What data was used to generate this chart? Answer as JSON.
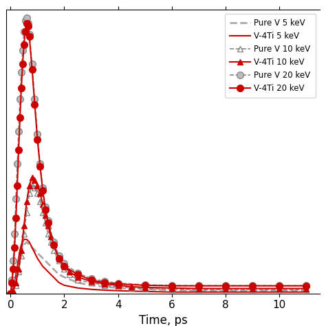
{
  "xlabel": "Time, ps",
  "ylabel": "",
  "xlim": [
    -0.15,
    11.5
  ],
  "ylim": [
    0,
    105
  ],
  "background_color": "#ffffff",
  "legend_loc": "upper right",
  "pure_v_5kev": {
    "t": [
      0.0,
      0.05,
      0.1,
      0.15,
      0.2,
      0.25,
      0.3,
      0.35,
      0.4,
      0.5,
      0.6,
      0.7,
      0.8,
      0.9,
      1.0,
      1.2,
      1.4,
      1.6,
      1.8,
      2.0,
      2.5,
      3.0,
      3.5,
      4.0,
      5.0,
      6.0,
      7.0,
      8.0,
      9.0,
      10.0,
      11.0
    ],
    "y": [
      0,
      1,
      3,
      5,
      7,
      9,
      11,
      13,
      16,
      18,
      19,
      18,
      17,
      16,
      15,
      13,
      11,
      9,
      7,
      6,
      4,
      3,
      2.5,
      2,
      1.5,
      1.2,
      1.0,
      1.0,
      1.0,
      1.0,
      1.0
    ],
    "color": "#aaaaaa",
    "linestyle": "--",
    "linewidth": 2.0,
    "label": "Pure V 5 keV"
  },
  "v4ti_5kev": {
    "t": [
      0.0,
      0.05,
      0.1,
      0.15,
      0.2,
      0.25,
      0.3,
      0.35,
      0.4,
      0.5,
      0.6,
      0.7,
      0.8,
      0.9,
      1.0,
      1.2,
      1.4,
      1.6,
      1.8,
      2.0,
      2.5,
      3.0,
      3.5,
      4.0,
      5.0,
      6.0,
      7.0,
      8.0,
      9.0,
      10.0,
      11.0
    ],
    "y": [
      0,
      1,
      2,
      4,
      7,
      10,
      13,
      16,
      18,
      20,
      20,
      19,
      17,
      15,
      13,
      10,
      8,
      6,
      4,
      3,
      2,
      1.5,
      1.2,
      1.0,
      0.7,
      0.5,
      0.5,
      0.5,
      0.5,
      0.5,
      0.5
    ],
    "color": "#cc0000",
    "linestyle": "-",
    "linewidth": 1.5,
    "label": "V-4Ti 5 keV"
  },
  "pure_v_10kev": {
    "t": [
      0.0,
      0.1,
      0.2,
      0.3,
      0.4,
      0.5,
      0.6,
      0.7,
      0.8,
      0.9,
      1.0,
      1.1,
      1.2,
      1.3,
      1.4,
      1.5,
      1.6,
      1.8,
      2.0,
      2.2,
      2.5,
      3.0,
      3.5,
      4.0,
      4.5,
      5.0,
      6.0,
      7.0,
      8.0,
      9.0,
      10.0,
      11.0
    ],
    "y": [
      0,
      1,
      3,
      8,
      14,
      22,
      30,
      37,
      40,
      39,
      37,
      34,
      30,
      26,
      22,
      19,
      16,
      12,
      9,
      7,
      5,
      4,
      3,
      2.5,
      2,
      1.8,
      1.5,
      1.4,
      1.4,
      1.4,
      1.4,
      1.4
    ],
    "color": "#888888",
    "linestyle": "--",
    "linewidth": 1.2,
    "marker": "^",
    "markersize": 6,
    "markerfacecolor": "none",
    "markeredgecolor": "#888888",
    "label": "Pure V 10 keV"
  },
  "v4ti_10kev": {
    "t": [
      0.0,
      0.1,
      0.2,
      0.3,
      0.4,
      0.5,
      0.6,
      0.7,
      0.8,
      0.9,
      1.0,
      1.1,
      1.2,
      1.3,
      1.4,
      1.5,
      1.6,
      1.8,
      2.0,
      2.2,
      2.5,
      3.0,
      3.5,
      4.0,
      4.5,
      5.0,
      6.0,
      7.0,
      8.0,
      9.0,
      10.0,
      11.0
    ],
    "y": [
      0,
      1,
      4,
      9,
      16,
      25,
      34,
      40,
      43,
      42,
      40,
      37,
      33,
      29,
      25,
      21,
      18,
      13,
      10,
      8,
      6,
      4.5,
      3.5,
      3,
      2.5,
      2.2,
      2.0,
      1.8,
      1.8,
      1.8,
      1.8,
      1.8
    ],
    "color": "#cc0000",
    "linestyle": "-",
    "linewidth": 1.5,
    "marker": "^",
    "markersize": 6,
    "markerfacecolor": "#cc0000",
    "markeredgecolor": "#cc0000",
    "label": "V-4Ti 10 keV"
  },
  "pure_v_20kev": {
    "t": [
      0.0,
      0.05,
      0.1,
      0.15,
      0.2,
      0.25,
      0.3,
      0.35,
      0.4,
      0.45,
      0.5,
      0.55,
      0.6,
      0.65,
      0.7,
      0.8,
      0.9,
      1.0,
      1.1,
      1.2,
      1.3,
      1.4,
      1.6,
      1.8,
      2.0,
      2.5,
      3.0,
      3.5,
      4.0,
      5.0,
      6.0,
      7.0,
      8.0,
      9.0,
      10.0,
      11.0
    ],
    "y": [
      0,
      5,
      12,
      22,
      35,
      48,
      60,
      72,
      82,
      90,
      97,
      101,
      102,
      100,
      96,
      85,
      72,
      59,
      48,
      39,
      32,
      27,
      19,
      14,
      11,
      7.5,
      5.5,
      4.5,
      3.8,
      3.2,
      3.0,
      2.9,
      2.9,
      2.9,
      2.9,
      2.9
    ],
    "color": "#888888",
    "linestyle": "--",
    "linewidth": 1.2,
    "marker": "o",
    "markersize": 7,
    "markerfacecolor": "#bbbbbb",
    "markeredgecolor": "#888888",
    "label": "Pure V 20 keV"
  },
  "v4ti_20kev": {
    "t": [
      0.0,
      0.05,
      0.1,
      0.15,
      0.2,
      0.25,
      0.3,
      0.35,
      0.4,
      0.45,
      0.5,
      0.55,
      0.6,
      0.65,
      0.7,
      0.8,
      0.9,
      1.0,
      1.1,
      1.2,
      1.3,
      1.4,
      1.6,
      1.8,
      2.0,
      2.5,
      3.0,
      3.5,
      4.0,
      5.0,
      6.0,
      7.0,
      8.0,
      9.0,
      10.0,
      11.0
    ],
    "y": [
      0,
      4,
      9,
      17,
      28,
      40,
      53,
      65,
      76,
      85,
      92,
      97,
      100,
      99,
      95,
      83,
      70,
      57,
      47,
      38,
      31,
      26,
      18,
      13,
      10,
      7,
      5,
      4,
      3.5,
      3.0,
      2.8,
      2.8,
      2.8,
      2.8,
      2.8,
      2.8
    ],
    "color": "#cc0000",
    "linestyle": "-",
    "linewidth": 1.5,
    "marker": "o",
    "markersize": 7,
    "markerfacecolor": "#cc0000",
    "markeredgecolor": "#cc0000",
    "label": "V-4Ti 20 keV"
  },
  "ytick_labels_visible": false,
  "xticks": [
    0,
    2,
    4,
    6,
    8,
    10
  ]
}
